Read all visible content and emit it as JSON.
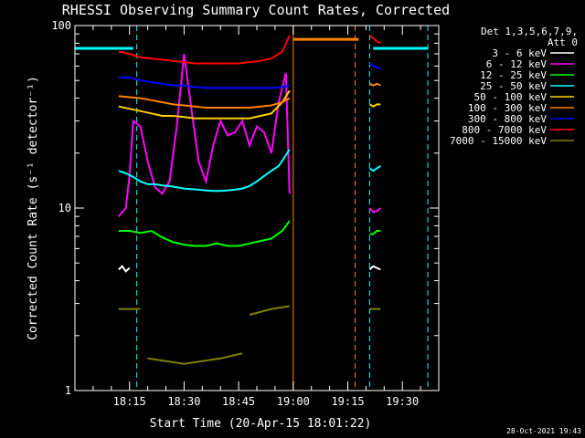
{
  "chart_data": {
    "type": "line",
    "title": "RHESSI Observing Summary Count Rates, Corrected",
    "xlabel": "Start Time (20-Apr-15 18:01:22)",
    "ylabel": "Corrected Count Rate (s⁻¹ detector⁻¹)",
    "y_scale": "log",
    "ylim": [
      1,
      100
    ],
    "xlim_minutes_after_1800": [
      0,
      100
    ],
    "x_tick_labels": [
      "18:15",
      "18:30",
      "18:45",
      "19:00",
      "19:15",
      "19:30"
    ],
    "x_tick_minutes": [
      15,
      30,
      45,
      60,
      75,
      90
    ],
    "y_tick_labels": [
      "1",
      "10",
      "100"
    ],
    "y_tick_values": [
      1,
      10,
      100
    ],
    "legend_header": [
      "Det 1,3,5,6,7,9,",
      "Att 0"
    ],
    "legend_position": "top-right",
    "timestamp": "28-Oct-2021 19:43",
    "vertical_lines": [
      {
        "x": 17,
        "color": "#00ffff",
        "style": "dashed"
      },
      {
        "x": 60,
        "color": "#ff8000",
        "style": "solid"
      },
      {
        "x": 77,
        "color": "#ff8000",
        "style": "dashed"
      },
      {
        "x": 81,
        "color": "#00ffff",
        "style": "dashed"
      },
      {
        "x": 97,
        "color": "#00ffff",
        "style": "dashed"
      }
    ],
    "bands": [
      {
        "name": "flag-cyan",
        "color": "#00ffff",
        "segments": [
          {
            "x0": 0,
            "x1": 16,
            "y": 75
          },
          {
            "x0": 82,
            "x1": 97,
            "y": 75
          }
        ]
      },
      {
        "name": "flag-orange",
        "color": "#ff8000",
        "segments": [
          {
            "x0": 60,
            "x1": 78,
            "y": 84
          }
        ]
      }
    ],
    "series": [
      {
        "name": "3 - 6 keV",
        "color": "#ffffff",
        "segments": [
          {
            "x": [
              12,
              13,
              14,
              15
            ],
            "y": [
              4.6,
              4.8,
              4.5,
              4.7
            ]
          },
          {
            "x": [
              81,
              82,
              83,
              84
            ],
            "y": [
              4.6,
              4.8,
              4.7,
              4.6
            ]
          }
        ]
      },
      {
        "name": "6 - 12 keV",
        "color": "#ff00ff",
        "segments": [
          {
            "x": [
              12,
              13,
              14,
              15,
              16,
              18,
              20,
              22,
              24,
              26,
              28,
              30,
              32,
              34,
              36,
              38,
              40,
              42,
              44,
              46,
              48,
              50,
              52,
              54,
              56,
              58,
              59
            ],
            "y": [
              9,
              9.5,
              10,
              15,
              30,
              28,
              18,
              13,
              12,
              14,
              28,
              70,
              35,
              18,
              14,
              22,
              30,
              25,
              26,
              30,
              22,
              28,
              26,
              20,
              38,
              55,
              12
            ]
          },
          {
            "x": [
              81,
              82,
              83,
              84
            ],
            "y": [
              10,
              9.5,
              9.6,
              10
            ]
          }
        ]
      },
      {
        "name": "12 - 25 keV",
        "color": "#00ff00",
        "segments": [
          {
            "x": [
              12,
              15,
              18,
              21,
              24,
              27,
              30,
              33,
              36,
              39,
              42,
              45,
              48,
              51,
              54,
              57,
              59
            ],
            "y": [
              7.5,
              7.5,
              7.3,
              7.5,
              6.9,
              6.5,
              6.3,
              6.2,
              6.2,
              6.4,
              6.2,
              6.2,
              6.4,
              6.6,
              6.8,
              7.5,
              8.5
            ]
          },
          {
            "x": [
              81,
              82,
              83,
              84
            ],
            "y": [
              7.2,
              7.2,
              7.5,
              7.5
            ]
          }
        ]
      },
      {
        "name": "25 - 50 keV",
        "color": "#00ffff",
        "segments": [
          {
            "x": [
              12,
              14,
              16,
              18,
              20,
              22,
              24,
              26,
              28,
              30,
              32,
              34,
              36,
              38,
              40,
              42,
              44,
              46,
              48,
              50,
              52,
              54,
              56,
              58,
              59
            ],
            "y": [
              16,
              15.5,
              14.8,
              14,
              13.5,
              13.5,
              13.3,
              13.2,
              13,
              12.8,
              12.7,
              12.6,
              12.5,
              12.4,
              12.4,
              12.5,
              12.6,
              12.8,
              13.2,
              14,
              15,
              16,
              17,
              19.5,
              21
            ]
          },
          {
            "x": [
              81,
              82,
              83,
              84
            ],
            "y": [
              16.5,
              16,
              16.5,
              17
            ]
          }
        ]
      },
      {
        "name": "50 - 100 keV",
        "color": "#ffd000",
        "segments": [
          {
            "x": [
              12,
              15,
              18,
              21,
              24,
              27,
              30,
              33,
              36,
              39,
              42,
              45,
              48,
              51,
              54,
              57,
              59
            ],
            "y": [
              36,
              35,
              34,
              33,
              32,
              32,
              31.5,
              31,
              31,
              31,
              31,
              31,
              31,
              32,
              33,
              38,
              44
            ]
          },
          {
            "x": [
              81,
              82,
              83,
              84
            ],
            "y": [
              37,
              36,
              37,
              37
            ]
          }
        ]
      },
      {
        "name": "100 - 300 keV",
        "color": "#ff8000",
        "segments": [
          {
            "x": [
              12,
              15,
              18,
              21,
              24,
              27,
              30,
              33,
              36,
              39,
              42,
              45,
              48,
              51,
              54,
              57,
              59
            ],
            "y": [
              41,
              40.5,
              40,
              39,
              38,
              37,
              36.5,
              36,
              35.5,
              35.5,
              35.5,
              35.5,
              35.5,
              36,
              36.5,
              38,
              40
            ]
          },
          {
            "x": [
              81,
              82,
              83,
              84
            ],
            "y": [
              48,
              47,
              48,
              47
            ]
          }
        ]
      },
      {
        "name": "300 - 800 keV",
        "color": "#0000ff",
        "segments": [
          {
            "x": [
              12,
              15,
              18,
              21,
              24,
              27,
              30,
              33,
              36,
              39,
              42,
              45,
              48,
              51,
              54,
              57,
              59
            ],
            "y": [
              52,
              52,
              50,
              49,
              48,
              47,
              47,
              46,
              45.5,
              45.5,
              45.5,
              45.5,
              45.5,
              45.5,
              45.5,
              46,
              47
            ]
          },
          {
            "x": [
              81,
              82,
              83,
              84
            ],
            "y": [
              62,
              60,
              59,
              58
            ]
          }
        ]
      },
      {
        "name": "800 - 7000 keV",
        "color": "#ff0000",
        "segments": [
          {
            "x": [
              12,
              15,
              18,
              21,
              24,
              27,
              30,
              33,
              36,
              39,
              42,
              45,
              48,
              51,
              54,
              57,
              59
            ],
            "y": [
              72,
              70,
              67,
              66,
              65,
              64,
              63,
              62,
              62,
              62,
              62,
              62,
              63,
              64,
              66,
              72,
              88
            ]
          },
          {
            "x": [
              81,
              82,
              83,
              84
            ],
            "y": [
              88,
              85,
              82,
              80
            ]
          }
        ]
      },
      {
        "name": "7000 - 15000 keV",
        "color": "#808000",
        "segments": [
          {
            "x": [
              12,
              15,
              18
            ],
            "y": [
              2.8,
              2.8,
              2.8
            ]
          },
          {
            "x": [
              20,
              30,
              40,
              46
            ],
            "y": [
              1.5,
              1.4,
              1.5,
              1.6
            ]
          },
          {
            "x": [
              48,
              54,
              59
            ],
            "y": [
              2.6,
              2.8,
              2.9
            ]
          },
          {
            "x": [
              81,
              82,
              83,
              84
            ],
            "y": [
              2.8,
              2.8,
              2.8,
              2.8
            ]
          }
        ]
      }
    ]
  }
}
